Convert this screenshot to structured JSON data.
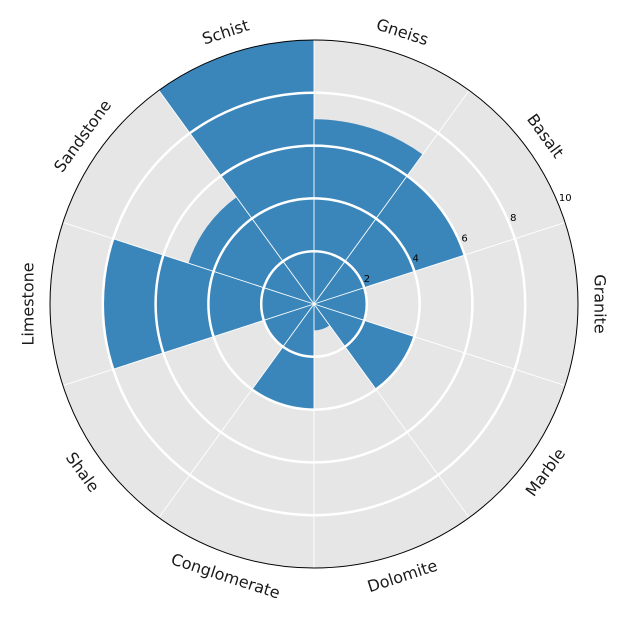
{
  "chart_data": {
    "type": "bar",
    "subtype": "polar",
    "categories": [
      "Gneiss",
      "Basalt",
      "Granite",
      "Marble",
      "Dolomite",
      "Conglomerate",
      "Shale",
      "Limestone",
      "Sandstone",
      "Schist"
    ],
    "values": [
      7,
      6,
      2,
      4,
      1,
      4,
      2,
      8,
      5,
      10
    ],
    "rlim": [
      0,
      10
    ],
    "r_ticks": [
      "2",
      "4",
      "6",
      "8",
      "10"
    ],
    "direction": "clockwise",
    "start": "top",
    "grid": true,
    "legend": "none",
    "colors": {
      "bar": "#3a86ba",
      "panel": "#e6e6e6",
      "grid": "#ffffff",
      "outline": "#000000"
    }
  }
}
